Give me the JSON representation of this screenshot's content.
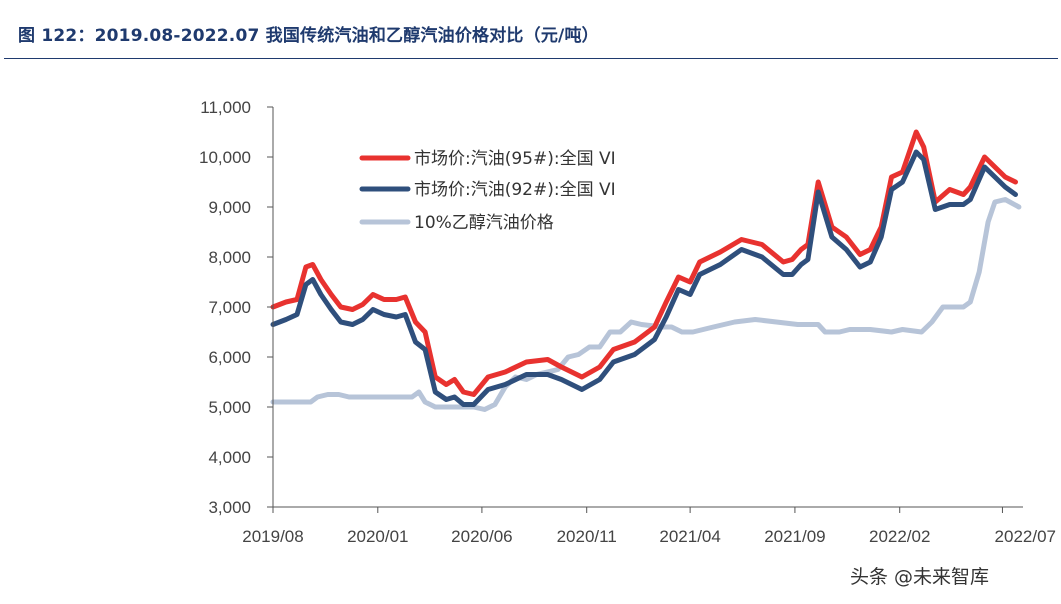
{
  "caption": "图 122：2019.08-2022.07 我国传统汽油和乙醇汽油价格对比（元/吨）",
  "watermark": "头条 @未来智库",
  "colors": {
    "caption": "#1f3a6e",
    "series_95": "#e8322f",
    "series_92": "#2f4f7c",
    "series_ethanol": "#b7c4d8"
  },
  "chart_data": {
    "type": "line",
    "title": "",
    "xlabel": "",
    "ylabel": "",
    "ylim": [
      3000,
      11000
    ],
    "yticks": [
      3000,
      4000,
      5000,
      6000,
      7000,
      8000,
      9000,
      10000,
      11000
    ],
    "ytick_labels": [
      "3,000",
      "4,000",
      "5,000",
      "6,000",
      "7,000",
      "8,000",
      "9,000",
      "10,000",
      "11,000"
    ],
    "xlim": [
      "2019-08-01",
      "2022-07-31"
    ],
    "xticks": [
      "2019-08-01",
      "2020-01-01",
      "2020-06-01",
      "2020-11-01",
      "2021-04-01",
      "2021-09-01",
      "2022-02-01",
      "2022-07-01"
    ],
    "xtick_labels": [
      "2019/08",
      "2020/01",
      "2020/06",
      "2020/11",
      "2021/04",
      "2021/09",
      "2022/02",
      "2022/07"
    ],
    "legend_position": "top-left",
    "grid": false,
    "series": [
      {
        "name": "市场价:汽油(95#):全国 VI",
        "color": "#e8322f",
        "points": [
          [
            "2019-08-01",
            7000
          ],
          [
            "2019-08-20",
            7100
          ],
          [
            "2019-09-05",
            7150
          ],
          [
            "2019-09-18",
            7800
          ],
          [
            "2019-09-28",
            7850
          ],
          [
            "2019-10-10",
            7550
          ],
          [
            "2019-10-25",
            7250
          ],
          [
            "2019-11-08",
            7000
          ],
          [
            "2019-11-25",
            6950
          ],
          [
            "2019-12-10",
            7050
          ],
          [
            "2019-12-25",
            7250
          ],
          [
            "2020-01-10",
            7150
          ],
          [
            "2020-01-28",
            7150
          ],
          [
            "2020-02-10",
            7200
          ],
          [
            "2020-02-25",
            6700
          ],
          [
            "2020-03-10",
            6500
          ],
          [
            "2020-03-25",
            5600
          ],
          [
            "2020-04-10",
            5450
          ],
          [
            "2020-04-22",
            5550
          ],
          [
            "2020-05-05",
            5300
          ],
          [
            "2020-05-20",
            5250
          ],
          [
            "2020-06-10",
            5600
          ],
          [
            "2020-07-05",
            5700
          ],
          [
            "2020-08-05",
            5900
          ],
          [
            "2020-09-05",
            5950
          ],
          [
            "2020-09-25",
            5800
          ],
          [
            "2020-10-25",
            5600
          ],
          [
            "2020-11-20",
            5800
          ],
          [
            "2020-12-10",
            6150
          ],
          [
            "2021-01-10",
            6300
          ],
          [
            "2021-02-08",
            6600
          ],
          [
            "2021-02-25",
            7100
          ],
          [
            "2021-03-15",
            7600
          ],
          [
            "2021-04-01",
            7500
          ],
          [
            "2021-04-15",
            7900
          ],
          [
            "2021-05-15",
            8100
          ],
          [
            "2021-06-15",
            8350
          ],
          [
            "2021-07-15",
            8250
          ],
          [
            "2021-08-15",
            7900
          ],
          [
            "2021-08-28",
            7950
          ],
          [
            "2021-09-10",
            8150
          ],
          [
            "2021-09-20",
            8250
          ],
          [
            "2021-10-05",
            9500
          ],
          [
            "2021-10-25",
            8600
          ],
          [
            "2021-11-15",
            8400
          ],
          [
            "2021-12-05",
            8050
          ],
          [
            "2021-12-20",
            8150
          ],
          [
            "2022-01-05",
            8600
          ],
          [
            "2022-01-20",
            9600
          ],
          [
            "2022-02-05",
            9700
          ],
          [
            "2022-02-25",
            10500
          ],
          [
            "2022-03-08",
            10200
          ],
          [
            "2022-03-25",
            9100
          ],
          [
            "2022-04-15",
            9350
          ],
          [
            "2022-05-05",
            9250
          ],
          [
            "2022-05-15",
            9400
          ],
          [
            "2022-06-05",
            10000
          ],
          [
            "2022-06-20",
            9800
          ],
          [
            "2022-07-05",
            9600
          ],
          [
            "2022-07-20",
            9500
          ]
        ]
      },
      {
        "name": "市场价:汽油(92#):全国 VI",
        "color": "#2f4f7c",
        "points": [
          [
            "2019-08-01",
            6650
          ],
          [
            "2019-08-20",
            6750
          ],
          [
            "2019-09-05",
            6850
          ],
          [
            "2019-09-18",
            7450
          ],
          [
            "2019-09-28",
            7550
          ],
          [
            "2019-10-10",
            7250
          ],
          [
            "2019-10-25",
            6950
          ],
          [
            "2019-11-08",
            6700
          ],
          [
            "2019-11-25",
            6650
          ],
          [
            "2019-12-10",
            6750
          ],
          [
            "2019-12-25",
            6950
          ],
          [
            "2020-01-10",
            6850
          ],
          [
            "2020-01-28",
            6800
          ],
          [
            "2020-02-10",
            6850
          ],
          [
            "2020-02-25",
            6300
          ],
          [
            "2020-03-10",
            6150
          ],
          [
            "2020-03-25",
            5300
          ],
          [
            "2020-04-10",
            5150
          ],
          [
            "2020-04-22",
            5200
          ],
          [
            "2020-05-05",
            5050
          ],
          [
            "2020-05-20",
            5050
          ],
          [
            "2020-06-10",
            5350
          ],
          [
            "2020-07-05",
            5450
          ],
          [
            "2020-08-05",
            5650
          ],
          [
            "2020-09-05",
            5650
          ],
          [
            "2020-09-25",
            5550
          ],
          [
            "2020-10-25",
            5350
          ],
          [
            "2020-11-20",
            5550
          ],
          [
            "2020-12-10",
            5900
          ],
          [
            "2021-01-10",
            6050
          ],
          [
            "2021-02-08",
            6350
          ],
          [
            "2021-02-25",
            6800
          ],
          [
            "2021-03-15",
            7350
          ],
          [
            "2021-04-01",
            7250
          ],
          [
            "2021-04-15",
            7650
          ],
          [
            "2021-05-15",
            7850
          ],
          [
            "2021-06-15",
            8150
          ],
          [
            "2021-07-15",
            8000
          ],
          [
            "2021-08-15",
            7650
          ],
          [
            "2021-08-28",
            7650
          ],
          [
            "2021-09-10",
            7850
          ],
          [
            "2021-09-20",
            7950
          ],
          [
            "2021-10-05",
            9300
          ],
          [
            "2021-10-25",
            8400
          ],
          [
            "2021-11-15",
            8150
          ],
          [
            "2021-12-05",
            7800
          ],
          [
            "2021-12-20",
            7900
          ],
          [
            "2022-01-05",
            8400
          ],
          [
            "2022-01-20",
            9350
          ],
          [
            "2022-02-05",
            9500
          ],
          [
            "2022-02-25",
            10100
          ],
          [
            "2022-03-08",
            9950
          ],
          [
            "2022-03-25",
            8950
          ],
          [
            "2022-04-15",
            9050
          ],
          [
            "2022-05-05",
            9050
          ],
          [
            "2022-05-15",
            9150
          ],
          [
            "2022-06-05",
            9800
          ],
          [
            "2022-06-20",
            9600
          ],
          [
            "2022-07-05",
            9400
          ],
          [
            "2022-07-20",
            9250
          ]
        ]
      },
      {
        "name": "10%乙醇汽油价格",
        "color": "#b7c4d8",
        "points": [
          [
            "2019-08-01",
            5100
          ],
          [
            "2019-09-25",
            5100
          ],
          [
            "2019-10-05",
            5200
          ],
          [
            "2019-10-20",
            5250
          ],
          [
            "2019-11-05",
            5250
          ],
          [
            "2019-11-20",
            5200
          ],
          [
            "2019-12-20",
            5200
          ],
          [
            "2020-01-20",
            5200
          ],
          [
            "2020-02-20",
            5200
          ],
          [
            "2020-03-01",
            5300
          ],
          [
            "2020-03-10",
            5100
          ],
          [
            "2020-03-25",
            5000
          ],
          [
            "2020-04-25",
            5000
          ],
          [
            "2020-05-20",
            5000
          ],
          [
            "2020-06-05",
            4950
          ],
          [
            "2020-06-20",
            5050
          ],
          [
            "2020-07-05",
            5400
          ],
          [
            "2020-07-20",
            5600
          ],
          [
            "2020-08-05",
            5550
          ],
          [
            "2020-08-20",
            5650
          ],
          [
            "2020-09-05",
            5700
          ],
          [
            "2020-09-20",
            5750
          ],
          [
            "2020-10-05",
            6000
          ],
          [
            "2020-10-20",
            6050
          ],
          [
            "2020-11-05",
            6200
          ],
          [
            "2020-11-20",
            6200
          ],
          [
            "2020-12-05",
            6500
          ],
          [
            "2020-12-20",
            6500
          ],
          [
            "2021-01-05",
            6700
          ],
          [
            "2021-01-20",
            6650
          ],
          [
            "2021-02-20",
            6600
          ],
          [
            "2021-03-05",
            6600
          ],
          [
            "2021-03-20",
            6500
          ],
          [
            "2021-04-05",
            6500
          ],
          [
            "2021-05-05",
            6600
          ],
          [
            "2021-06-05",
            6700
          ],
          [
            "2021-07-05",
            6750
          ],
          [
            "2021-08-05",
            6700
          ],
          [
            "2021-09-05",
            6650
          ],
          [
            "2021-10-05",
            6650
          ],
          [
            "2021-10-15",
            6500
          ],
          [
            "2021-11-05",
            6500
          ],
          [
            "2021-11-20",
            6550
          ],
          [
            "2021-12-20",
            6550
          ],
          [
            "2022-01-20",
            6500
          ],
          [
            "2022-02-05",
            6550
          ],
          [
            "2022-03-05",
            6500
          ],
          [
            "2022-03-20",
            6700
          ],
          [
            "2022-04-05",
            7000
          ],
          [
            "2022-04-20",
            7000
          ],
          [
            "2022-05-05",
            7000
          ],
          [
            "2022-05-15",
            7100
          ],
          [
            "2022-05-28",
            7700
          ],
          [
            "2022-06-10",
            8700
          ],
          [
            "2022-06-20",
            9100
          ],
          [
            "2022-07-05",
            9150
          ],
          [
            "2022-07-25",
            9000
          ]
        ]
      }
    ]
  }
}
